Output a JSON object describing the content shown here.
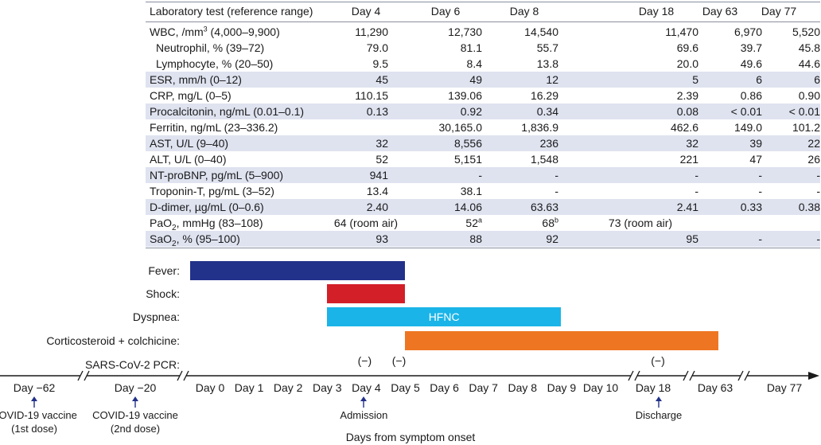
{
  "table": {
    "header": {
      "label": "Laboratory test (reference range)",
      "days": [
        "Day 4",
        "Day 6",
        "Day 8",
        "Day 18",
        "Day 63",
        "Day 77"
      ]
    },
    "rows": [
      {
        "label": "WBC, /mm",
        "label_sup": "3",
        "label_tail": " (4,000–9,900)",
        "values": [
          "11,290",
          "12,730",
          "14,540",
          "11,470",
          "6,970",
          "5,520"
        ]
      },
      {
        "label": "Neutrophil, % (39–72)",
        "indent": true,
        "values": [
          "79.0",
          "81.1",
          "55.7",
          "69.6",
          "39.7",
          "45.8"
        ]
      },
      {
        "label": "Lymphocyte, % (20–50)",
        "indent": true,
        "values": [
          "9.5",
          "8.4",
          "13.8",
          "20.0",
          "49.6",
          "44.6"
        ]
      },
      {
        "label": "ESR, mm/h (0–12)",
        "values": [
          "45",
          "49",
          "12",
          "5",
          "6",
          "6"
        ]
      },
      {
        "label": "CRP, mg/L (0–5)",
        "values": [
          "110.15",
          "139.06",
          "16.29",
          "2.39",
          "0.86",
          "0.90"
        ]
      },
      {
        "label": "Procalcitonin, ng/mL (0.01–0.1)",
        "values": [
          "0.13",
          "0.92",
          "0.34",
          "0.08",
          "< 0.01",
          "< 0.01"
        ]
      },
      {
        "label": "Ferritin, ng/mL (23–336.2)",
        "values": [
          "",
          "30,165.0",
          "1,836.9",
          "462.6",
          "149.0",
          "101.2"
        ]
      },
      {
        "label": "AST, U/L (9–40)",
        "values": [
          "32",
          "8,556",
          "236",
          "32",
          "39",
          "22"
        ]
      },
      {
        "label": "ALT, U/L (0–40)",
        "values": [
          "52",
          "5,151",
          "1,548",
          "221",
          "47",
          "26"
        ]
      },
      {
        "label": "NT-proBNP, pg/mL (5–900)",
        "values": [
          "941",
          "-",
          "-",
          "-",
          "-",
          "-"
        ]
      },
      {
        "label": "Troponin-T, pg/mL (3–52)",
        "values": [
          "13.4",
          "38.1",
          "-",
          "-",
          "-",
          "-"
        ]
      },
      {
        "label": "D-dimer, µg/mL (0–0.6)",
        "values": [
          "2.40",
          "14.06",
          "63.63",
          "2.41",
          "0.33",
          "0.38"
        ]
      },
      {
        "label": "PaO",
        "label_sub": "2",
        "label_tail": ", mmHg (83–108)",
        "values": [
          "64 (room air)",
          "52",
          "68",
          "73 (room air)",
          "",
          ""
        ],
        "value_sups": [
          "",
          "a",
          "b",
          "",
          "",
          ""
        ]
      },
      {
        "label": "SaO",
        "label_sub": "2",
        "label_tail": ", % (95–100)",
        "values": [
          "93",
          "88",
          "92",
          "95",
          "-",
          "-"
        ]
      }
    ]
  },
  "timeline": {
    "rows": [
      {
        "label": "Fever:",
        "bar_from": 0,
        "bar_to": 5.5,
        "color": "#223189",
        "text": ""
      },
      {
        "label": "Shock:",
        "bar_from": 3.5,
        "bar_to": 5.5,
        "color": "#d31f28",
        "text": ""
      },
      {
        "label": "Dyspnea:",
        "bar_from": 3.5,
        "bar_to": 9.5,
        "color": "#1ab4e8",
        "text": "HFNC"
      },
      {
        "label": "Corticosteroid + colchicine:",
        "bar_from": 5.5,
        "bar_to": 13.5,
        "color": "#ee7622",
        "text": ""
      },
      {
        "label": "SARS-CoV-2 PCR:",
        "markers": [
          {
            "at": 4,
            "text": "(−)"
          },
          {
            "at": 5,
            "text": "(−)"
          },
          {
            "at": 12,
            "text": "(−)"
          }
        ]
      }
    ],
    "axis_days": [
      {
        "label": "Day −62",
        "slot": -4
      },
      {
        "label": "Day −20",
        "slot": -2.15
      },
      {
        "label": "Day 0",
        "slot": 0
      },
      {
        "label": "Day 1",
        "slot": 1
      },
      {
        "label": "Day 2",
        "slot": 2
      },
      {
        "label": "Day 3",
        "slot": 3
      },
      {
        "label": "Day 4",
        "slot": 4
      },
      {
        "label": "Day 5",
        "slot": 5
      },
      {
        "label": "Day 6",
        "slot": 6
      },
      {
        "label": "Day 7",
        "slot": 7
      },
      {
        "label": "Day 8",
        "slot": 8
      },
      {
        "label": "Day 9",
        "slot": 9
      },
      {
        "label": "Day 10",
        "slot": 10
      },
      {
        "label": "Day 18",
        "slot": 12
      },
      {
        "label": "Day 63",
        "slot": 13
      },
      {
        "label": "Day 77",
        "slot": 14.5
      }
    ],
    "events": [
      {
        "slot": -4,
        "lines": [
          "COVID-19 vaccine",
          "(1st dose)"
        ]
      },
      {
        "slot": -2.15,
        "lines": [
          "COVID-19 vaccine",
          "(2nd dose)"
        ]
      },
      {
        "slot": 4,
        "lines": [
          "Admission"
        ]
      },
      {
        "slot": 12,
        "lines": [
          "Discharge"
        ]
      }
    ],
    "axis_title": "Days from symptom onset",
    "arrow_color": "#223189"
  }
}
